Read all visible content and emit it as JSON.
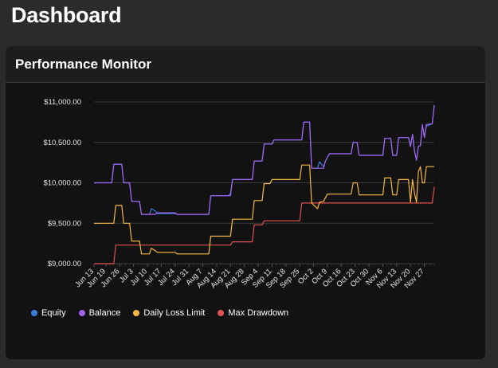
{
  "page": {
    "title": "Dashboard"
  },
  "card": {
    "title": "Performance Monitor"
  },
  "chart_data": {
    "type": "line",
    "title": "Performance Monitor",
    "xlabel": "",
    "ylabel": "",
    "ylim": [
      9000,
      11000
    ],
    "yticks": [
      9000,
      9500,
      10000,
      10500,
      11000
    ],
    "ytick_labels": [
      "$9,000.00",
      "$9,500.00",
      "$10,000.00",
      "$10,500.00",
      "$11,000.00"
    ],
    "x_start": "2024-06-13",
    "x_end": "2024-12-02",
    "xtick_labels": [
      {
        "label": "Jun 13",
        "date": "2024-06-13"
      },
      {
        "label": "Jun 19",
        "date": "2024-06-19"
      },
      {
        "label": "Jun 26",
        "date": "2024-06-26"
      },
      {
        "label": "Jul 3",
        "date": "2024-07-03"
      },
      {
        "label": "Jul 10",
        "date": "2024-07-10"
      },
      {
        "label": "Jul 17",
        "date": "2024-07-17"
      },
      {
        "label": "Jul 24",
        "date": "2024-07-24"
      },
      {
        "label": "Jul 31",
        "date": "2024-07-31"
      },
      {
        "label": "Aug 7",
        "date": "2024-08-07"
      },
      {
        "label": "Aug 14",
        "date": "2024-08-14"
      },
      {
        "label": "Aug 21",
        "date": "2024-08-21"
      },
      {
        "label": "Aug 28",
        "date": "2024-08-28"
      },
      {
        "label": "Sep 4",
        "date": "2024-09-04"
      },
      {
        "label": "Sep 11",
        "date": "2024-09-11"
      },
      {
        "label": "Sep 18",
        "date": "2024-09-18"
      },
      {
        "label": "Sep 25",
        "date": "2024-09-25"
      },
      {
        "label": "Oct 2",
        "date": "2024-10-02"
      },
      {
        "label": "Oct 9",
        "date": "2024-10-09"
      },
      {
        "label": "Oct 16",
        "date": "2024-10-16"
      },
      {
        "label": "Oct 23",
        "date": "2024-10-23"
      },
      {
        "label": "Oct 30",
        "date": "2024-10-30"
      },
      {
        "label": "Nov 6",
        "date": "2024-11-06"
      },
      {
        "label": "Nov 13",
        "date": "2024-11-13"
      },
      {
        "label": "Nov 20",
        "date": "2024-11-20"
      },
      {
        "label": "Nov 27",
        "date": "2024-11-27"
      }
    ],
    "grid": true,
    "legend_position": "bottom-left",
    "series": [
      {
        "name": "Equity",
        "color": "#3b7ddd",
        "points": [
          [
            "2024-06-13",
            10000
          ],
          [
            "2024-06-22",
            10000
          ],
          [
            "2024-06-23",
            10230
          ],
          [
            "2024-06-27",
            10230
          ],
          [
            "2024-06-28",
            10000
          ],
          [
            "2024-07-01",
            10000
          ],
          [
            "2024-07-02",
            9770
          ],
          [
            "2024-07-06",
            9770
          ],
          [
            "2024-07-07",
            9610
          ],
          [
            "2024-07-11",
            9610
          ],
          [
            "2024-07-12",
            9680
          ],
          [
            "2024-07-14",
            9650
          ],
          [
            "2024-07-15",
            9620
          ],
          [
            "2024-07-24",
            9620
          ],
          [
            "2024-07-25",
            9610
          ],
          [
            "2024-08-10",
            9610
          ],
          [
            "2024-08-11",
            9840
          ],
          [
            "2024-08-20",
            9840
          ],
          [
            "2024-08-21",
            9870
          ],
          [
            "2024-08-22",
            10040
          ],
          [
            "2024-09-01",
            10040
          ],
          [
            "2024-09-02",
            10270
          ],
          [
            "2024-09-06",
            10270
          ],
          [
            "2024-09-07",
            10480
          ],
          [
            "2024-09-11",
            10480
          ],
          [
            "2024-09-12",
            10530
          ],
          [
            "2024-09-26",
            10530
          ],
          [
            "2024-09-27",
            10750
          ],
          [
            "2024-09-30",
            10750
          ],
          [
            "2024-10-01",
            10180
          ],
          [
            "2024-10-04",
            10180
          ],
          [
            "2024-10-05",
            10260
          ],
          [
            "2024-10-07",
            10200
          ],
          [
            "2024-10-08",
            10270
          ],
          [
            "2024-10-10",
            10360
          ],
          [
            "2024-10-21",
            10360
          ],
          [
            "2024-10-22",
            10500
          ],
          [
            "2024-10-24",
            10500
          ],
          [
            "2024-10-25",
            10340
          ],
          [
            "2024-11-06",
            10340
          ],
          [
            "2024-11-07",
            10550
          ],
          [
            "2024-11-10",
            10550
          ],
          [
            "2024-11-11",
            10340
          ],
          [
            "2024-11-13",
            10340
          ],
          [
            "2024-11-14",
            10560
          ],
          [
            "2024-11-19",
            10560
          ],
          [
            "2024-11-20",
            10450
          ],
          [
            "2024-11-21",
            10600
          ],
          [
            "2024-11-22",
            10390
          ],
          [
            "2024-11-23",
            10280
          ],
          [
            "2024-11-24",
            10450
          ],
          [
            "2024-11-25",
            10460
          ],
          [
            "2024-11-26",
            10720
          ],
          [
            "2024-11-27",
            10560
          ],
          [
            "2024-11-28",
            10700
          ],
          [
            "2024-12-01",
            10730
          ],
          [
            "2024-12-02",
            10960
          ]
        ]
      },
      {
        "name": "Balance",
        "color": "#a463f2",
        "points": [
          [
            "2024-06-13",
            10000
          ],
          [
            "2024-06-22",
            10000
          ],
          [
            "2024-06-23",
            10230
          ],
          [
            "2024-06-27",
            10230
          ],
          [
            "2024-06-28",
            10000
          ],
          [
            "2024-07-01",
            10000
          ],
          [
            "2024-07-02",
            9770
          ],
          [
            "2024-07-06",
            9770
          ],
          [
            "2024-07-07",
            9610
          ],
          [
            "2024-07-14",
            9610
          ],
          [
            "2024-07-15",
            9630
          ],
          [
            "2024-07-24",
            9630
          ],
          [
            "2024-07-25",
            9610
          ],
          [
            "2024-08-10",
            9610
          ],
          [
            "2024-08-11",
            9840
          ],
          [
            "2024-08-21",
            9840
          ],
          [
            "2024-08-22",
            10040
          ],
          [
            "2024-09-01",
            10040
          ],
          [
            "2024-09-02",
            10270
          ],
          [
            "2024-09-06",
            10270
          ],
          [
            "2024-09-07",
            10480
          ],
          [
            "2024-09-11",
            10480
          ],
          [
            "2024-09-12",
            10530
          ],
          [
            "2024-09-26",
            10530
          ],
          [
            "2024-09-27",
            10750
          ],
          [
            "2024-09-30",
            10750
          ],
          [
            "2024-10-01",
            10180
          ],
          [
            "2024-10-07",
            10180
          ],
          [
            "2024-10-08",
            10270
          ],
          [
            "2024-10-10",
            10360
          ],
          [
            "2024-10-21",
            10360
          ],
          [
            "2024-10-22",
            10500
          ],
          [
            "2024-10-24",
            10500
          ],
          [
            "2024-10-25",
            10340
          ],
          [
            "2024-11-06",
            10340
          ],
          [
            "2024-11-07",
            10550
          ],
          [
            "2024-11-10",
            10550
          ],
          [
            "2024-11-11",
            10340
          ],
          [
            "2024-11-13",
            10340
          ],
          [
            "2024-11-14",
            10560
          ],
          [
            "2024-11-19",
            10560
          ],
          [
            "2024-11-20",
            10450
          ],
          [
            "2024-11-21",
            10600
          ],
          [
            "2024-11-22",
            10390
          ],
          [
            "2024-11-23",
            10280
          ],
          [
            "2024-11-24",
            10450
          ],
          [
            "2024-11-25",
            10460
          ],
          [
            "2024-11-26",
            10720
          ],
          [
            "2024-11-27",
            10560
          ],
          [
            "2024-11-28",
            10720
          ],
          [
            "2024-12-01",
            10730
          ],
          [
            "2024-12-02",
            10960
          ]
        ]
      },
      {
        "name": "Daily Loss Limit",
        "color": "#f5b942",
        "points": [
          [
            "2024-06-13",
            9500
          ],
          [
            "2024-06-23",
            9500
          ],
          [
            "2024-06-24",
            9720
          ],
          [
            "2024-06-27",
            9720
          ],
          [
            "2024-06-28",
            9500
          ],
          [
            "2024-07-01",
            9500
          ],
          [
            "2024-07-02",
            9280
          ],
          [
            "2024-07-06",
            9280
          ],
          [
            "2024-07-07",
            9120
          ],
          [
            "2024-07-11",
            9120
          ],
          [
            "2024-07-12",
            9190
          ],
          [
            "2024-07-14",
            9160
          ],
          [
            "2024-07-15",
            9140
          ],
          [
            "2024-07-24",
            9140
          ],
          [
            "2024-07-25",
            9120
          ],
          [
            "2024-08-10",
            9120
          ],
          [
            "2024-08-11",
            9340
          ],
          [
            "2024-08-21",
            9340
          ],
          [
            "2024-08-22",
            9550
          ],
          [
            "2024-09-01",
            9550
          ],
          [
            "2024-09-02",
            9780
          ],
          [
            "2024-09-06",
            9780
          ],
          [
            "2024-09-07",
            9990
          ],
          [
            "2024-09-10",
            9990
          ],
          [
            "2024-09-11",
            10040
          ],
          [
            "2024-09-25",
            10040
          ],
          [
            "2024-09-26",
            10220
          ],
          [
            "2024-09-30",
            10220
          ],
          [
            "2024-10-01",
            9750
          ],
          [
            "2024-10-04",
            9680
          ],
          [
            "2024-10-05",
            9760
          ],
          [
            "2024-10-07",
            9770
          ],
          [
            "2024-10-09",
            9860
          ],
          [
            "2024-10-21",
            9860
          ],
          [
            "2024-10-22",
            10000
          ],
          [
            "2024-10-24",
            10000
          ],
          [
            "2024-10-25",
            9850
          ],
          [
            "2024-11-06",
            9850
          ],
          [
            "2024-11-07",
            10060
          ],
          [
            "2024-11-10",
            10060
          ],
          [
            "2024-11-11",
            9850
          ],
          [
            "2024-11-13",
            9850
          ],
          [
            "2024-11-14",
            10040
          ],
          [
            "2024-11-19",
            10040
          ],
          [
            "2024-11-20",
            9760
          ],
          [
            "2024-11-21",
            10040
          ],
          [
            "2024-11-22",
            9870
          ],
          [
            "2024-11-23",
            9760
          ],
          [
            "2024-11-24",
            10140
          ],
          [
            "2024-11-25",
            10200
          ],
          [
            "2024-11-26",
            10000
          ],
          [
            "2024-11-27",
            10000
          ],
          [
            "2024-11-28",
            10200
          ],
          [
            "2024-12-02",
            10200
          ]
        ]
      },
      {
        "name": "Max Drawdown",
        "color": "#e05252",
        "points": [
          [
            "2024-06-13",
            9000
          ],
          [
            "2024-06-23",
            9000
          ],
          [
            "2024-06-24",
            9230
          ],
          [
            "2024-08-21",
            9230
          ],
          [
            "2024-08-22",
            9270
          ],
          [
            "2024-09-01",
            9270
          ],
          [
            "2024-09-02",
            9480
          ],
          [
            "2024-09-06",
            9480
          ],
          [
            "2024-09-07",
            9530
          ],
          [
            "2024-09-25",
            9530
          ],
          [
            "2024-09-26",
            9750
          ],
          [
            "2024-12-01",
            9750
          ],
          [
            "2024-12-02",
            9950
          ]
        ]
      }
    ]
  }
}
